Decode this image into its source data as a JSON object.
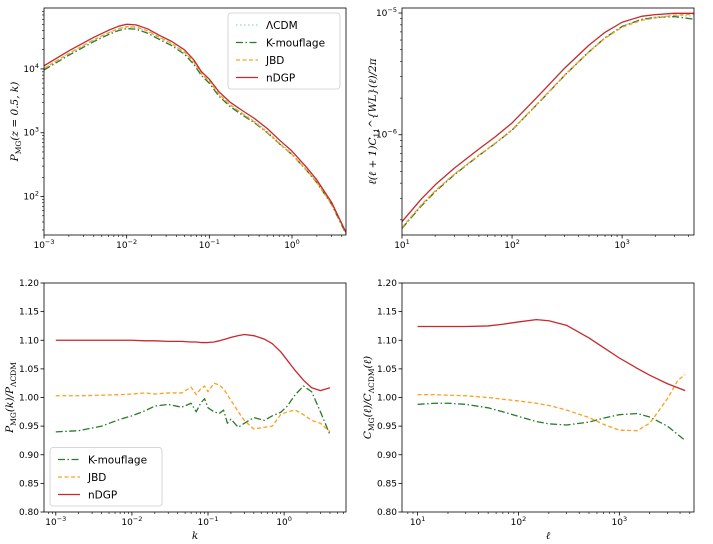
{
  "chart_data": [
    {
      "id": "tl",
      "type": "line",
      "xscale": "log",
      "yscale": "log",
      "xlim": [
        0.001,
        4.5
      ],
      "ylim": [
        25,
        90000
      ],
      "xlabel": "",
      "ylabel": "P_MG(z = 0.5, k)",
      "xticks": [
        {
          "v": 0.001,
          "b": "10",
          "e": "−3"
        },
        {
          "v": 0.01,
          "b": "10",
          "e": "−2"
        },
        {
          "v": 0.1,
          "b": "10",
          "e": "−1"
        },
        {
          "v": 1,
          "b": "10",
          "e": "0"
        }
      ],
      "yticks": [
        {
          "v": 100,
          "b": "10",
          "e": "2"
        },
        {
          "v": 1000,
          "b": "10",
          "e": "3"
        },
        {
          "v": 10000,
          "b": "10",
          "e": "4"
        }
      ],
      "legend": "top-right",
      "legend_entries": [
        "ΛCDM",
        "K-mouflage",
        "JBD",
        "nDGP"
      ],
      "series": [
        {
          "name": "ΛCDM",
          "color": "#8fd3d3",
          "dash": "1.5,2.5",
          "x": [
            0.001,
            0.002,
            0.004,
            0.006,
            0.008,
            0.01,
            0.013,
            0.018,
            0.025,
            0.035,
            0.05,
            0.065,
            0.08,
            0.1,
            0.13,
            0.18,
            0.25,
            0.35,
            0.5,
            0.7,
            1,
            1.5,
            2,
            3,
            4.5
          ],
          "y": [
            10200,
            17500,
            28500,
            36500,
            42500,
            45500,
            44500,
            38500,
            30500,
            24500,
            18000,
            12500,
            8300,
            6300,
            4000,
            2700,
            2020,
            1520,
            1060,
            705,
            470,
            265,
            170,
            78,
            27
          ]
        },
        {
          "name": "K-mouflage",
          "color": "#2a7a2a",
          "dash": "7,2.5,1.5,2.5",
          "x": [
            0.001,
            0.002,
            0.004,
            0.006,
            0.008,
            0.01,
            0.013,
            0.018,
            0.025,
            0.035,
            0.05,
            0.065,
            0.08,
            0.1,
            0.13,
            0.18,
            0.25,
            0.35,
            0.5,
            0.7,
            1,
            1.5,
            2,
            3,
            4.5
          ],
          "y": [
            9600,
            16400,
            26800,
            34400,
            40000,
            42800,
            41900,
            36200,
            28800,
            23200,
            17000,
            11800,
            7900,
            5950,
            3770,
            2540,
            1900,
            1440,
            1005,
            675,
            455,
            258,
            165,
            76,
            26
          ]
        },
        {
          "name": "JBD",
          "color": "#ff9f1c",
          "dash": "4,2.5",
          "x": [
            0.001,
            0.002,
            0.004,
            0.006,
            0.008,
            0.01,
            0.013,
            0.018,
            0.025,
            0.035,
            0.05,
            0.065,
            0.08,
            0.1,
            0.13,
            0.18,
            0.25,
            0.35,
            0.5,
            0.7,
            1,
            1.5,
            2,
            3,
            4.5
          ],
          "y": [
            10200,
            17500,
            28600,
            36700,
            42800,
            46000,
            45300,
            39400,
            31300,
            25000,
            18400,
            12900,
            8500,
            6400,
            4080,
            2720,
            2000,
            1480,
            1020,
            680,
            455,
            260,
            167,
            77,
            27
          ]
        },
        {
          "name": "nDGP",
          "color": "#c8282c",
          "dash": "",
          "x": [
            0.001,
            0.002,
            0.004,
            0.006,
            0.008,
            0.01,
            0.013,
            0.018,
            0.025,
            0.035,
            0.05,
            0.065,
            0.08,
            0.1,
            0.13,
            0.18,
            0.25,
            0.35,
            0.5,
            0.7,
            1,
            1.5,
            2,
            3,
            4.5
          ],
          "y": [
            11200,
            19200,
            31300,
            40100,
            46700,
            50000,
            48900,
            42300,
            33500,
            27000,
            19900,
            13800,
            9100,
            6900,
            4420,
            2980,
            2230,
            1680,
            1170,
            775,
            515,
            287,
            182,
            82,
            27.5
          ]
        }
      ]
    },
    {
      "id": "tr",
      "type": "line",
      "xscale": "log",
      "yscale": "log",
      "xlim": [
        10,
        4500
      ],
      "ylim": [
        1.5e-07,
        1.1e-05
      ],
      "xlabel": "",
      "ylabel": "ℓ(ℓ + 1)C_11^{WL}(ℓ)/2π",
      "xticks": [
        {
          "v": 10,
          "b": "10",
          "e": "1"
        },
        {
          "v": 100,
          "b": "10",
          "e": "2"
        },
        {
          "v": 1000,
          "b": "10",
          "e": "3"
        }
      ],
      "yticks": [
        {
          "v": 1e-06,
          "b": "10",
          "e": "−6"
        },
        {
          "v": 1e-05,
          "b": "10",
          "e": "−5"
        }
      ],
      "series": [
        {
          "name": "ΛCDM",
          "color": "#8fd3d3",
          "dash": "1.5,2.5",
          "x": [
            10,
            15,
            20,
            30,
            50,
            70,
            100,
            150,
            200,
            300,
            500,
            700,
            1000,
            1500,
            2000,
            3000,
            4500
          ],
          "y": [
            1.72e-07,
            2.65e-07,
            3.45e-07,
            4.75e-07,
            6.8e-07,
            8.5e-07,
            1.1e-06,
            1.6e-06,
            2.1e-06,
            3.1e-06,
            4.85e-06,
            6.3e-06,
            7.8e-06,
            8.9e-06,
            9.3e-06,
            9.55e-06,
            9.45e-06
          ]
        },
        {
          "name": "K-mouflage",
          "color": "#2a7a2a",
          "dash": "7,2.5,1.5,2.5",
          "x": [
            10,
            15,
            20,
            30,
            50,
            70,
            100,
            150,
            200,
            300,
            500,
            700,
            1000,
            1500,
            2000,
            3000,
            4500
          ],
          "y": [
            1.7e-07,
            2.6e-07,
            3.4e-07,
            4.7e-07,
            6.75e-07,
            8.45e-07,
            1.09e-06,
            1.59e-06,
            2.08e-06,
            3.07e-06,
            4.8e-06,
            6.25e-06,
            7.75e-06,
            8.85e-06,
            9.2e-06,
            9.35e-06,
            8.9e-06
          ]
        },
        {
          "name": "JBD",
          "color": "#ff9f1c",
          "dash": "4,2.5",
          "x": [
            10,
            15,
            20,
            30,
            50,
            70,
            100,
            150,
            200,
            300,
            500,
            700,
            1000,
            1500,
            2000,
            3000,
            4500
          ],
          "y": [
            1.73e-07,
            2.66e-07,
            3.46e-07,
            4.76e-07,
            6.8e-07,
            8.5e-07,
            1.1e-06,
            1.6e-06,
            2.1e-06,
            3.08e-06,
            4.8e-06,
            6.2e-06,
            7.65e-06,
            8.7e-06,
            9.1e-06,
            9.6e-06,
            9.8e-06
          ]
        },
        {
          "name": "nDGP",
          "color": "#c8282c",
          "dash": "",
          "x": [
            10,
            15,
            20,
            30,
            50,
            70,
            100,
            150,
            200,
            300,
            500,
            700,
            1000,
            1500,
            2000,
            3000,
            4500
          ],
          "y": [
            1.93e-07,
            2.97e-07,
            3.87e-07,
            5.33e-07,
            7.64e-07,
            9.58e-07,
            1.25e-06,
            1.82e-06,
            2.39e-06,
            3.52e-06,
            5.45e-06,
            6.95e-06,
            8.4e-06,
            9.4e-06,
            9.7e-06,
            9.95e-06,
            9.95e-06
          ]
        }
      ]
    },
    {
      "id": "bl",
      "type": "line",
      "xscale": "log",
      "yscale": "linear",
      "xlim": [
        0.0007,
        6.5
      ],
      "ylim": [
        0.8,
        1.2
      ],
      "xlabel": "k",
      "ylabel": "P_MG(k)/P_ΛCDM",
      "xticks": [
        {
          "v": 0.001,
          "b": "10",
          "e": "−3"
        },
        {
          "v": 0.01,
          "b": "10",
          "e": "−2"
        },
        {
          "v": 0.1,
          "b": "10",
          "e": "−1"
        },
        {
          "v": 1,
          "b": "10",
          "e": "0"
        }
      ],
      "yticks": [
        {
          "v": 0.8,
          "t": "0.80"
        },
        {
          "v": 0.85,
          "t": "0.85"
        },
        {
          "v": 0.9,
          "t": "0.90"
        },
        {
          "v": 0.95,
          "t": "0.95"
        },
        {
          "v": 1.0,
          "t": "1.00"
        },
        {
          "v": 1.05,
          "t": "1.05"
        },
        {
          "v": 1.1,
          "t": "1.10"
        },
        {
          "v": 1.15,
          "t": "1.15"
        },
        {
          "v": 1.2,
          "t": "1.20"
        }
      ],
      "legend": "lower-left",
      "legend_entries": [
        "K-mouflage",
        "JBD",
        "nDGP"
      ],
      "series": [
        {
          "name": "K-mouflage",
          "color": "#2a7a2a",
          "dash": "7,2.5,1.5,2.5",
          "x": [
            0.001,
            0.002,
            0.004,
            0.007,
            0.01,
            0.015,
            0.02,
            0.03,
            0.045,
            0.06,
            0.07,
            0.08,
            0.09,
            0.1,
            0.12,
            0.14,
            0.16,
            0.18,
            0.2,
            0.25,
            0.3,
            0.4,
            0.55,
            0.7,
            0.9,
            1.1,
            1.4,
            1.8,
            2.3,
            3,
            4
          ],
          "y": [
            0.94,
            0.942,
            0.95,
            0.962,
            0.968,
            0.977,
            0.985,
            0.988,
            0.983,
            0.99,
            0.975,
            0.99,
            0.998,
            0.982,
            0.975,
            0.972,
            0.978,
            0.955,
            0.962,
            0.948,
            0.955,
            0.965,
            0.96,
            0.968,
            0.974,
            0.985,
            1.005,
            1.02,
            1.01,
            0.975,
            0.935
          ]
        },
        {
          "name": "JBD",
          "color": "#ff9f1c",
          "dash": "4,2.5",
          "x": [
            0.001,
            0.002,
            0.004,
            0.007,
            0.01,
            0.015,
            0.02,
            0.03,
            0.045,
            0.06,
            0.07,
            0.08,
            0.09,
            0.1,
            0.12,
            0.14,
            0.16,
            0.18,
            0.2,
            0.25,
            0.3,
            0.4,
            0.55,
            0.7,
            0.9,
            1.1,
            1.4,
            1.8,
            2.3,
            3,
            4
          ],
          "y": [
            1.003,
            1.003,
            1.004,
            1.005,
            1.006,
            1.008,
            1.006,
            1.008,
            1.008,
            1.018,
            1.005,
            1.015,
            1.02,
            1.01,
            1.025,
            1.022,
            1.015,
            1.005,
            0.995,
            0.975,
            0.96,
            0.945,
            0.948,
            0.95,
            0.97,
            0.975,
            0.978,
            0.97,
            0.96,
            0.955,
            0.94
          ]
        },
        {
          "name": "nDGP",
          "color": "#c8282c",
          "dash": "",
          "x": [
            0.001,
            0.002,
            0.004,
            0.007,
            0.01,
            0.015,
            0.02,
            0.03,
            0.045,
            0.06,
            0.07,
            0.08,
            0.09,
            0.1,
            0.12,
            0.14,
            0.16,
            0.18,
            0.2,
            0.25,
            0.3,
            0.4,
            0.55,
            0.7,
            0.9,
            1.1,
            1.4,
            1.8,
            2.3,
            3,
            4
          ],
          "y": [
            1.1,
            1.1,
            1.1,
            1.1,
            1.1,
            1.099,
            1.099,
            1.098,
            1.098,
            1.097,
            1.097,
            1.096,
            1.096,
            1.096,
            1.097,
            1.099,
            1.101,
            1.103,
            1.105,
            1.108,
            1.11,
            1.108,
            1.102,
            1.094,
            1.08,
            1.065,
            1.047,
            1.03,
            1.017,
            1.012,
            1.017
          ]
        }
      ]
    },
    {
      "id": "br",
      "type": "line",
      "xscale": "log",
      "yscale": "linear",
      "xlim": [
        7,
        5500
      ],
      "ylim": [
        0.8,
        1.2
      ],
      "xlabel": "ℓ",
      "ylabel": "C_MG(ℓ)/C_ΛCDM(ℓ)",
      "xticks": [
        {
          "v": 10,
          "b": "10",
          "e": "1"
        },
        {
          "v": 100,
          "b": "10",
          "e": "2"
        },
        {
          "v": 1000,
          "b": "10",
          "e": "3"
        }
      ],
      "yticks": [
        {
          "v": 0.8,
          "t": "0.80"
        },
        {
          "v": 0.85,
          "t": "0.85"
        },
        {
          "v": 0.9,
          "t": "0.90"
        },
        {
          "v": 0.95,
          "t": "0.95"
        },
        {
          "v": 1.0,
          "t": "1.00"
        },
        {
          "v": 1.05,
          "t": "1.05"
        },
        {
          "v": 1.1,
          "t": "1.10"
        },
        {
          "v": 1.15,
          "t": "1.15"
        },
        {
          "v": 1.2,
          "t": "1.20"
        }
      ],
      "series": [
        {
          "name": "K-mouflage",
          "color": "#2a7a2a",
          "dash": "7,2.5,1.5,2.5",
          "x": [
            10,
            15,
            20,
            30,
            50,
            70,
            100,
            150,
            200,
            300,
            500,
            700,
            1000,
            1500,
            2000,
            3000,
            4500
          ],
          "y": [
            0.988,
            0.99,
            0.99,
            0.988,
            0.982,
            0.975,
            0.967,
            0.958,
            0.954,
            0.952,
            0.957,
            0.964,
            0.97,
            0.972,
            0.966,
            0.95,
            0.925
          ]
        },
        {
          "name": "JBD",
          "color": "#ff9f1c",
          "dash": "4,2.5",
          "x": [
            10,
            15,
            20,
            30,
            50,
            70,
            100,
            150,
            200,
            300,
            500,
            700,
            1000,
            1500,
            2000,
            3000,
            3800,
            4500
          ],
          "y": [
            1.005,
            1.005,
            1.004,
            1.003,
            1.0,
            0.997,
            0.994,
            0.99,
            0.986,
            0.978,
            0.965,
            0.953,
            0.943,
            0.942,
            0.955,
            0.998,
            1.03,
            1.04
          ]
        },
        {
          "name": "nDGP",
          "color": "#c8282c",
          "dash": "",
          "x": [
            10,
            15,
            20,
            30,
            50,
            70,
            100,
            150,
            200,
            300,
            500,
            700,
            1000,
            1500,
            2000,
            3000,
            4500
          ],
          "y": [
            1.124,
            1.124,
            1.124,
            1.124,
            1.125,
            1.128,
            1.132,
            1.136,
            1.134,
            1.126,
            1.104,
            1.087,
            1.069,
            1.051,
            1.039,
            1.024,
            1.012
          ]
        }
      ]
    }
  ]
}
